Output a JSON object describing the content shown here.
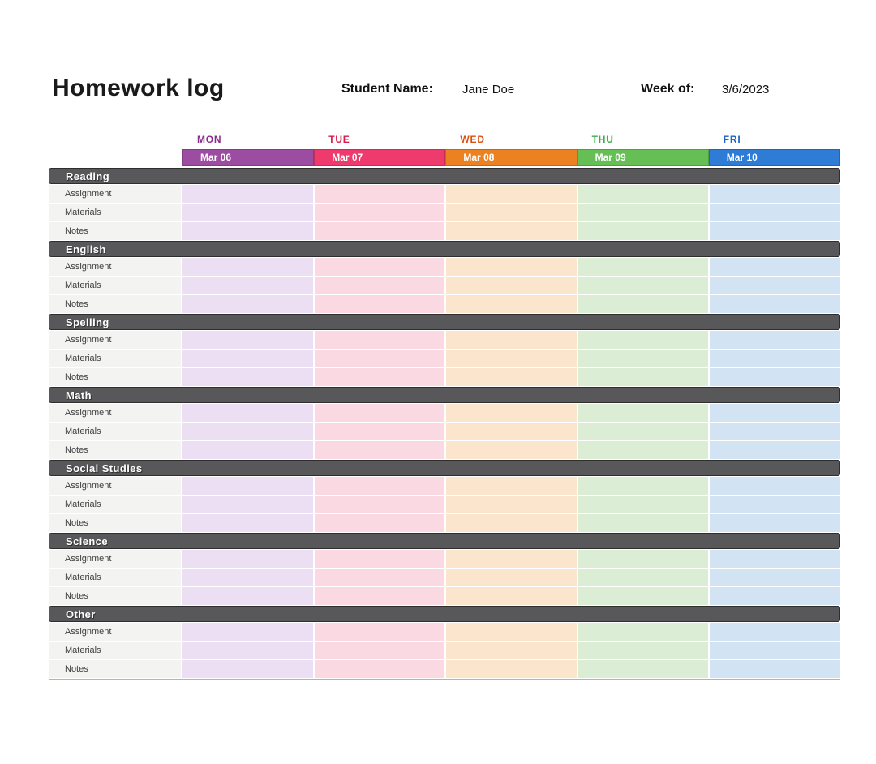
{
  "page": {
    "title": "Homework log",
    "background": "#ffffff"
  },
  "header": {
    "student_name_label": "Student Name:",
    "student_name_value": "Jane Doe",
    "week_of_label": "Week of:",
    "week_of_value": "3/6/2023"
  },
  "log_table": {
    "days": [
      {
        "name": "MON",
        "date": "Mar 06",
        "name_color": "#8c2b8e",
        "bar_color": "#9d4da1",
        "cell_color": "#ecdff3"
      },
      {
        "name": "TUE",
        "date": "Mar 07",
        "name_color": "#d91b4b",
        "bar_color": "#ef3a6d",
        "cell_color": "#fad9e3"
      },
      {
        "name": "WED",
        "date": "Mar 08",
        "name_color": "#dd4f0e",
        "bar_color": "#ec8122",
        "cell_color": "#fbe5cd"
      },
      {
        "name": "THU",
        "date": "Mar 09",
        "name_color": "#3cae49",
        "bar_color": "#65bf55",
        "cell_color": "#dcedd6"
      },
      {
        "name": "FRI",
        "date": "Mar 10",
        "name_color": "#1d63c9",
        "bar_color": "#2e7cd6",
        "cell_color": "#d2e3f4"
      }
    ],
    "sections": [
      "Reading",
      "English",
      "Spelling",
      "Math",
      "Social Studies",
      "Science",
      "Other"
    ],
    "row_labels": [
      "Assignment",
      "Materials",
      "Notes"
    ],
    "colors": {
      "section_bar_bg": "#58585a",
      "section_bar_text": "#ffffff",
      "label_cell_bg": "#f3f3f2",
      "label_text": "#3f3f3f"
    }
  }
}
